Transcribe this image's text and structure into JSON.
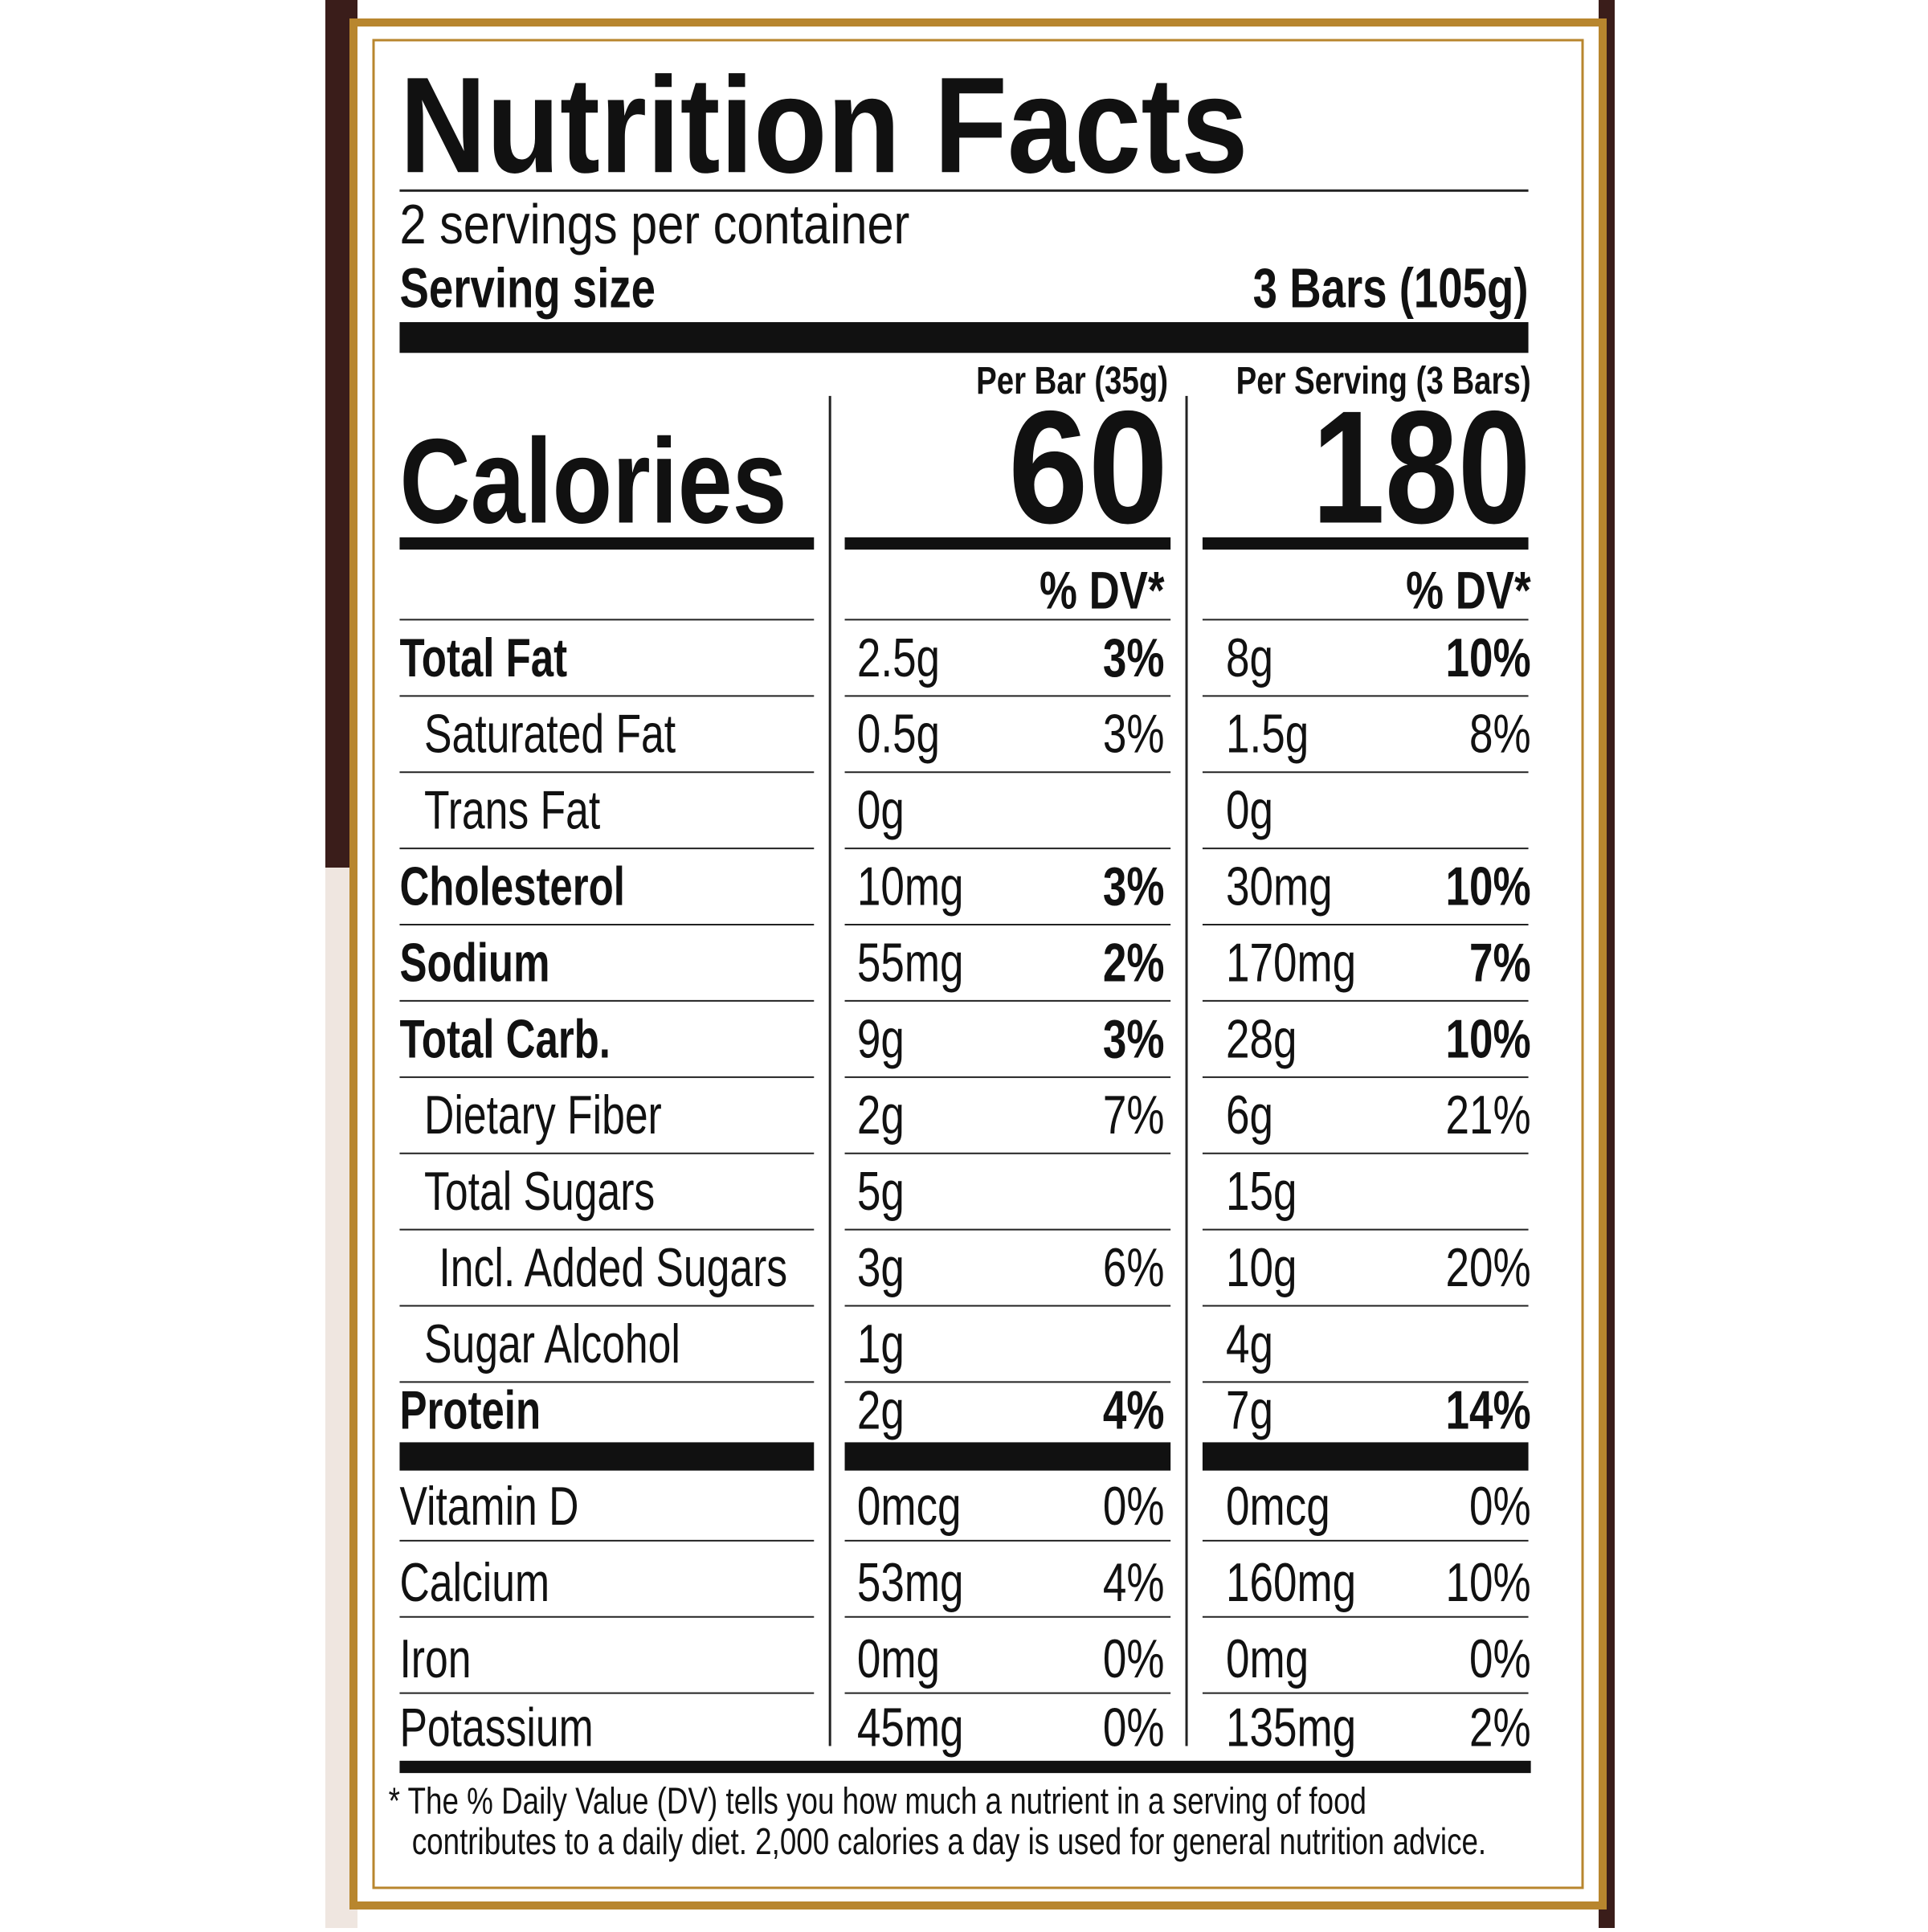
{
  "title": "Nutrition Facts",
  "servings": "2 servings per container",
  "serving_size": {
    "label": "Serving size",
    "value": "3 Bars (105g)"
  },
  "calories_label": "Calories",
  "columns": [
    {
      "header": "Per Bar (35g)",
      "calories": "60",
      "dv_header": "% DV*"
    },
    {
      "header": "Per Serving (3 Bars)",
      "calories": "180",
      "dv_header": "% DV*"
    }
  ],
  "nutrients": [
    {
      "name": "Total Fat",
      "bold": true,
      "indent": 0,
      "bar": "2.5g",
      "bar_dv": "3%",
      "serving": "8g",
      "serving_dv": "10%"
    },
    {
      "name": "Saturated Fat",
      "bold": false,
      "indent": 1,
      "bar": "0.5g",
      "bar_dv": "3%",
      "serving": "1.5g",
      "serving_dv": "8%"
    },
    {
      "name": "Trans Fat",
      "bold": false,
      "indent": 1,
      "bar": "0g",
      "serving": "0g"
    },
    {
      "name": "Cholesterol",
      "bold": true,
      "indent": 0,
      "bar": "10mg",
      "bar_dv": "3%",
      "serving": "30mg",
      "serving_dv": "10%"
    },
    {
      "name": "Sodium",
      "bold": true,
      "indent": 0,
      "bar": "55mg",
      "bar_dv": "2%",
      "serving": "170mg",
      "serving_dv": "7%"
    },
    {
      "name": "Total Carb.",
      "bold": true,
      "indent": 0,
      "bar": "9g",
      "bar_dv": "3%",
      "serving": "28g",
      "serving_dv": "10%"
    },
    {
      "name": "Dietary Fiber",
      "bold": false,
      "indent": 1,
      "bar": "2g",
      "bar_dv": "7%",
      "serving": "6g",
      "serving_dv": "21%"
    },
    {
      "name": "Total Sugars",
      "bold": false,
      "indent": 1,
      "bar": "5g",
      "serving": "15g"
    },
    {
      "name": "Incl. Added Sugars",
      "bold": false,
      "indent": 2,
      "bar": "3g",
      "bar_dv": "6%",
      "serving": "10g",
      "serving_dv": "20%"
    },
    {
      "name": "Sugar Alcohol",
      "bold": false,
      "indent": 1,
      "bar": "1g",
      "serving": "4g"
    },
    {
      "name": "Protein",
      "bold": true,
      "indent": 0,
      "bar": "2g",
      "bar_dv": "4%",
      "serving": "7g",
      "serving_dv": "14%"
    }
  ],
  "vitamins": [
    {
      "name": "Vitamin D",
      "bar": "0mcg",
      "bar_dv": "0%",
      "serving": "0mcg",
      "serving_dv": "0%"
    },
    {
      "name": "Calcium",
      "bar": "53mg",
      "bar_dv": "4%",
      "serving": "160mg",
      "serving_dv": "10%"
    },
    {
      "name": "Iron",
      "bar": "0mg",
      "bar_dv": "0%",
      "serving": "0mg",
      "serving_dv": "0%"
    },
    {
      "name": "Potassium",
      "bar": "45mg",
      "bar_dv": "0%",
      "serving": "135mg",
      "serving_dv": "2%"
    }
  ],
  "footnote": [
    "* The % Daily Value (DV) tells you how much a nutrient in a serving of food",
    "contributes to a daily diet. 2,000 calories a day is used for general nutrition advice."
  ]
}
